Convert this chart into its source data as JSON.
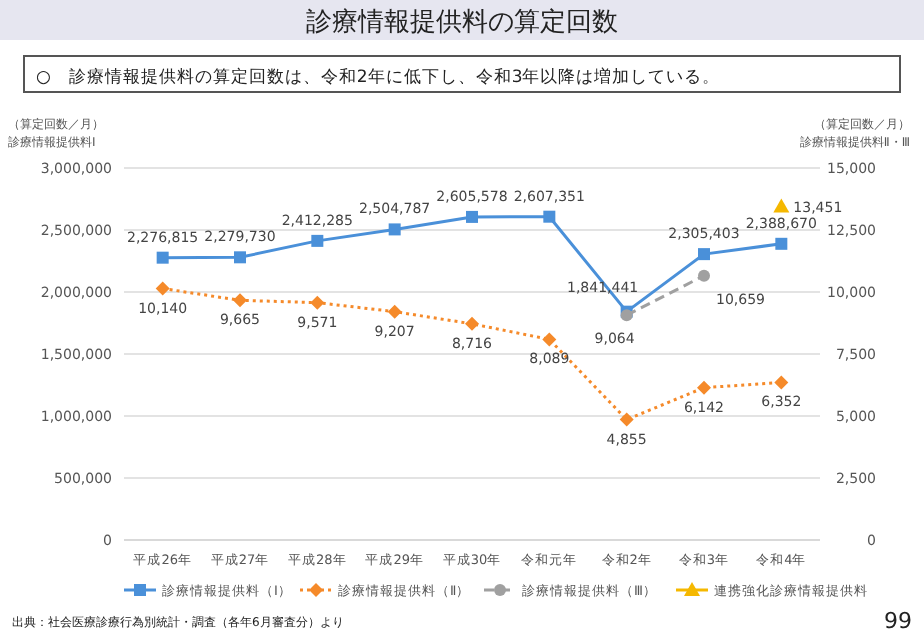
{
  "chart_data": {
    "type": "line",
    "title": "診療情報提供料の算定回数",
    "subtitle": "○　診療情報提供料の算定回数は、令和2年に低下し、令和3年以降は増加している。",
    "ylabel": "（算定回数／月）診療情報提供料Ⅰ",
    "y2label": "（算定回数／月）診療情報提供料Ⅱ・Ⅲ",
    "categories": [
      "平成26年",
      "平成27年",
      "平成28年",
      "平成29年",
      "平成30年",
      "令和元年",
      "令和2年",
      "令和3年",
      "令和4年"
    ],
    "series": [
      {
        "name": "診療情報提供料（Ⅰ）",
        "color": "#4a90d9",
        "marker": "square",
        "line_style": "solid",
        "values": [
          2276815,
          2279730,
          2412285,
          2504787,
          2605578,
          2607351,
          1841441,
          2305403,
          2388670
        ],
        "value_labels": [
          "2,276,815",
          "2,279,730",
          "2,412,285",
          "2,504,787",
          "2,605,578",
          "2,607,351",
          "1,841,441",
          "2,305,403",
          "2,388,670"
        ]
      },
      {
        "name": "診療情報提供料（Ⅱ）",
        "color": "#f58a2a",
        "marker": "diamond",
        "line_style": "dotted",
        "axis": "y2",
        "values": [
          10140,
          9665,
          9571,
          9207,
          8716,
          8089,
          4855,
          6142,
          6352
        ],
        "value_labels": [
          "10,140",
          "9,665",
          "9,571",
          "9,207",
          "8,716",
          "8,089",
          "4,855",
          "6,142",
          "6,352"
        ]
      },
      {
        "name": "診療情報提供料（Ⅲ）",
        "color": "#a0a0a0",
        "marker": "circle",
        "line_style": "dashed",
        "axis": "y2",
        "values": [
          null,
          null,
          null,
          null,
          null,
          null,
          9064,
          10659,
          null
        ],
        "value_labels": [
          null,
          null,
          null,
          null,
          null,
          null,
          "9,064",
          "10,659",
          null
        ]
      },
      {
        "name": "連携強化診療情報提供料",
        "color": "#f5b800",
        "marker": "triangle",
        "line_style": "solid",
        "axis": "y2",
        "values": [
          null,
          null,
          null,
          null,
          null,
          null,
          null,
          null,
          13451
        ],
        "value_labels": [
          null,
          null,
          null,
          null,
          null,
          null,
          null,
          null,
          "13,451"
        ]
      }
    ],
    "ylim": [
      0,
      3000000
    ],
    "yticks": [
      {
        "value": 0,
        "label": "0"
      },
      {
        "value": 500000,
        "label": "500,000"
      },
      {
        "value": 1000000,
        "label": "1,000,000"
      },
      {
        "value": 1500000,
        "label": "1,500,000"
      },
      {
        "value": 2000000,
        "label": "2,000,000"
      },
      {
        "value": 2500000,
        "label": "2,500,000"
      },
      {
        "value": 3000000,
        "label": "3,000,000"
      }
    ],
    "y2lim": [
      0,
      15000
    ],
    "y2ticks": [
      {
        "value": 0,
        "label": "0"
      },
      {
        "value": 2500,
        "label": "2,500"
      },
      {
        "value": 5000,
        "label": "5,000"
      },
      {
        "value": 7500,
        "label": "7,500"
      },
      {
        "value": 10000,
        "label": "10,000"
      },
      {
        "value": 12500,
        "label": "12,500"
      },
      {
        "value": 15000,
        "label": "15,000"
      }
    ],
    "grid": "y",
    "legend": "bottom",
    "annotations": [
      "出典：社会医療診療行為別統計・調査（各年6月審査分）より",
      "99"
    ]
  }
}
